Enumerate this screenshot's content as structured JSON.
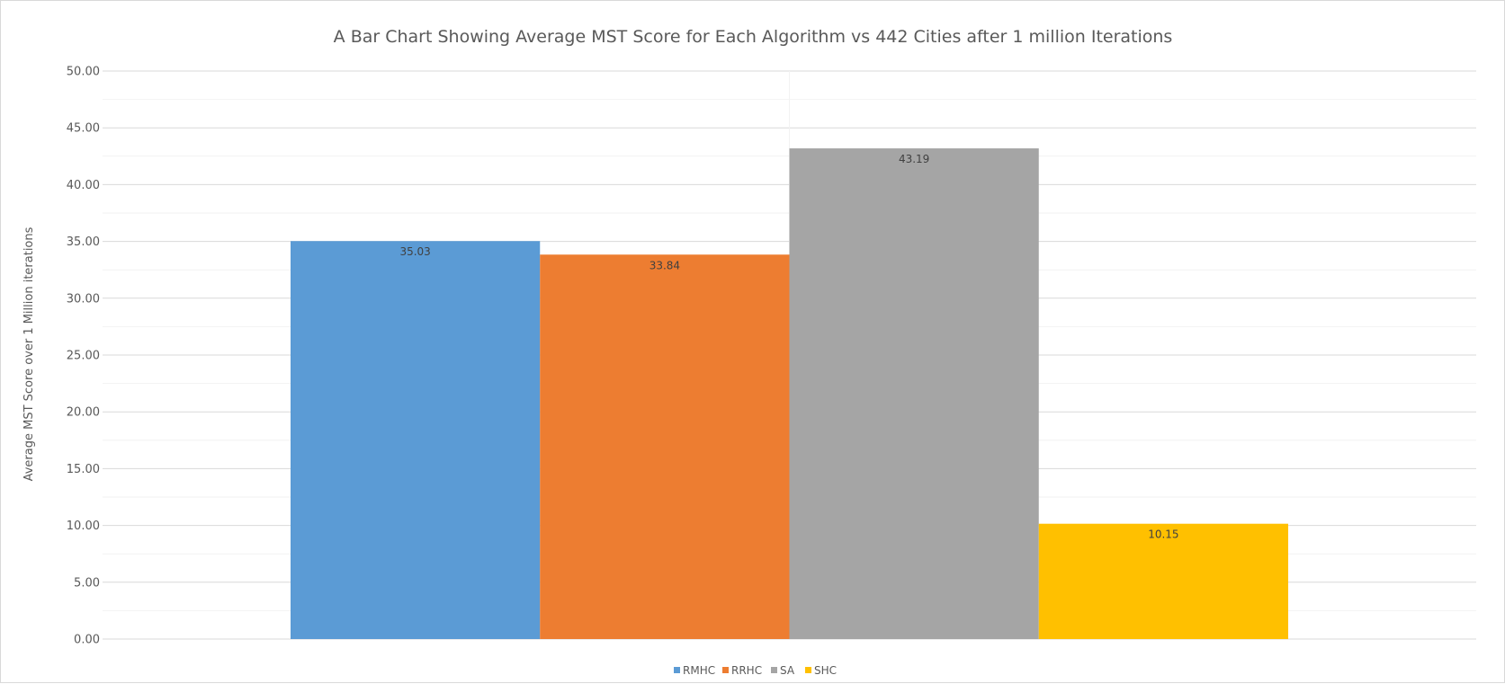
{
  "chart_data": {
    "type": "bar",
    "title": "A Bar Chart Showing Average MST Score for Each Algorithm vs 442 Cities after 1 million Iterations",
    "xlabel": "",
    "ylabel": "Average MST Score over 1 Million iterations",
    "categories": [
      ""
    ],
    "series": [
      {
        "name": "RMHC",
        "values": [
          35.03
        ],
        "color": "#5b9bd5",
        "label": "35.03"
      },
      {
        "name": "RRHC",
        "values": [
          33.84
        ],
        "color": "#ed7d31",
        "label": "33.84"
      },
      {
        "name": "SA",
        "values": [
          43.19
        ],
        "color": "#a5a5a5",
        "label": "43.19"
      },
      {
        "name": "SHC",
        "values": [
          10.15
        ],
        "color": "#ffc000",
        "label": "10.15"
      }
    ],
    "ylim": [
      0,
      50
    ],
    "ytick_step": 5,
    "ytick_labels": [
      "0.00",
      "5.00",
      "10.00",
      "15.00",
      "20.00",
      "25.00",
      "30.00",
      "35.00",
      "40.00",
      "45.00",
      "50.00"
    ],
    "grid": true,
    "minor_grid": true,
    "legend": "bottom"
  }
}
